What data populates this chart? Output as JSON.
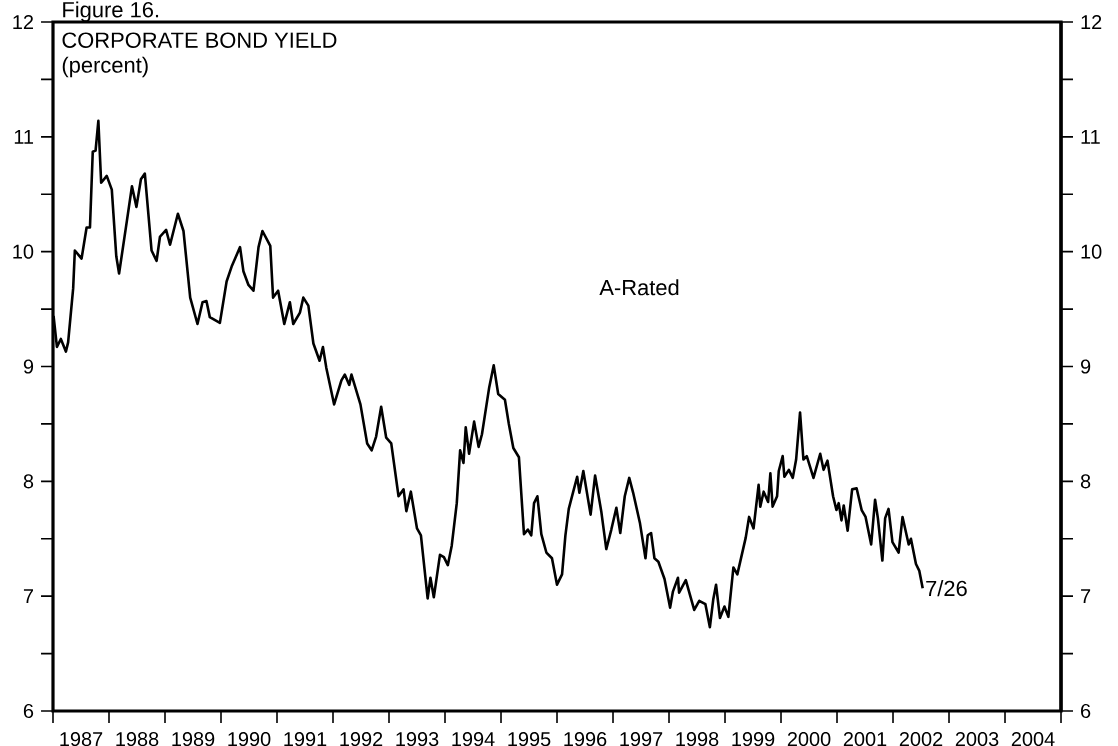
{
  "chart_data": {
    "type": "line",
    "title": "CORPORATE BOND YIELD",
    "subtitle": "(percent)",
    "annotations": [
      "Figure 16.",
      {
        "text": "7/26",
        "x": 2002.53,
        "y": 7.07
      }
    ],
    "xlim": [
      1987,
      2005
    ],
    "ylim": [
      6,
      12
    ],
    "y2lim": [
      6,
      12
    ],
    "xticks": [
      {
        "value": 1987,
        "label": null
      },
      {
        "value": 1987.5,
        "label": "1987"
      },
      {
        "value": 1988,
        "label": null
      },
      {
        "value": 1988.5,
        "label": "1988"
      },
      {
        "value": 1989,
        "label": null
      },
      {
        "value": 1989.5,
        "label": "1989"
      },
      {
        "value": 1990,
        "label": null
      },
      {
        "value": 1990.5,
        "label": "1990"
      },
      {
        "value": 1991,
        "label": null
      },
      {
        "value": 1991.5,
        "label": "1991"
      },
      {
        "value": 1992,
        "label": null
      },
      {
        "value": 1992.5,
        "label": "1992"
      },
      {
        "value": 1993,
        "label": null
      },
      {
        "value": 1993.5,
        "label": "1993"
      },
      {
        "value": 1994,
        "label": null
      },
      {
        "value": 1994.5,
        "label": "1994"
      },
      {
        "value": 1995,
        "label": null
      },
      {
        "value": 1995.5,
        "label": "1995"
      },
      {
        "value": 1996,
        "label": null
      },
      {
        "value": 1996.5,
        "label": "1996"
      },
      {
        "value": 1997,
        "label": null
      },
      {
        "value": 1997.5,
        "label": "1997"
      },
      {
        "value": 1998,
        "label": null
      },
      {
        "value": 1998.5,
        "label": "1998"
      },
      {
        "value": 1999,
        "label": null
      },
      {
        "value": 1999.5,
        "label": "1999"
      },
      {
        "value": 2000,
        "label": null
      },
      {
        "value": 2000.5,
        "label": "2000"
      },
      {
        "value": 2001,
        "label": null
      },
      {
        "value": 2001.5,
        "label": "2001"
      },
      {
        "value": 2002,
        "label": null
      },
      {
        "value": 2002.5,
        "label": "2002"
      },
      {
        "value": 2003,
        "label": null
      },
      {
        "value": 2003.5,
        "label": "2003"
      },
      {
        "value": 2004,
        "label": null
      },
      {
        "value": 2004.5,
        "label": "2004"
      },
      {
        "value": 2005,
        "label": null
      }
    ],
    "yticks": [
      6,
      {
        "value": 6.5,
        "label": null
      },
      7,
      {
        "value": 7.5,
        "label": null
      },
      8,
      {
        "value": 8.5,
        "label": null
      },
      9,
      {
        "value": 9.5,
        "label": null
      },
      10,
      {
        "value": 10.5,
        "label": null
      },
      11,
      {
        "value": 11.5,
        "label": null
      },
      12
    ],
    "y2ticks": [
      6,
      {
        "value": 6.5,
        "label": null
      },
      7,
      {
        "value": 7.5,
        "label": null
      },
      8,
      {
        "value": 8.5,
        "label": null
      },
      9,
      {
        "value": 9.5,
        "label": null
      },
      10,
      {
        "value": 10.5,
        "label": null
      },
      11,
      {
        "value": 11.5,
        "label": null
      },
      12
    ],
    "x": [
      1987.01,
      1987.07,
      1987.14,
      1987.23,
      1987.27,
      1987.36,
      1987.39,
      1987.51,
      1987.6,
      1987.66,
      1987.71,
      1987.76,
      1987.81,
      1987.86,
      1987.96,
      1988.05,
      1988.13,
      1988.18,
      1988.32,
      1988.41,
      1988.49,
      1988.57,
      1988.64,
      1988.76,
      1988.85,
      1988.91,
      1989.02,
      1989.09,
      1989.23,
      1989.33,
      1989.45,
      1989.58,
      1989.67,
      1989.74,
      1989.8,
      1989.98,
      1990.1,
      1990.19,
      1990.34,
      1990.4,
      1990.49,
      1990.58,
      1990.67,
      1990.74,
      1990.88,
      1990.93,
      1991.02,
      1991.13,
      1991.23,
      1991.29,
      1991.41,
      1991.47,
      1991.56,
      1991.65,
      1991.76,
      1991.82,
      1991.88,
      1992.02,
      1992.15,
      1992.21,
      1992.29,
      1992.33,
      1992.49,
      1992.61,
      1992.69,
      1992.77,
      1992.86,
      1992.95,
      1993.04,
      1993.17,
      1993.26,
      1993.31,
      1993.39,
      1993.5,
      1993.57,
      1993.69,
      1993.74,
      1993.8,
      1993.91,
      1993.98,
      1994.05,
      1994.12,
      1994.21,
      1994.27,
      1994.33,
      1994.37,
      1994.43,
      1994.52,
      1994.6,
      1994.66,
      1994.79,
      1994.87,
      1994.95,
      1995.07,
      1995.14,
      1995.22,
      1995.32,
      1995.41,
      1995.48,
      1995.54,
      1995.59,
      1995.65,
      1995.72,
      1995.81,
      1995.91,
      1996.0,
      1996.09,
      1996.15,
      1996.21,
      1996.29,
      1996.36,
      1996.4,
      1996.47,
      1996.6,
      1996.68,
      1996.79,
      1996.88,
      1996.97,
      1997.06,
      1997.13,
      1997.21,
      1997.29,
      1997.36,
      1997.48,
      1997.58,
      1997.62,
      1997.68,
      1997.74,
      1997.81,
      1997.92,
      1998.02,
      1998.07,
      1998.16,
      1998.18,
      1998.3,
      1998.45,
      1998.54,
      1998.65,
      1998.73,
      1998.79,
      1998.84,
      1998.91,
      1998.99,
      1999.06,
      1999.15,
      1999.22,
      1999.37,
      1999.43,
      1999.51,
      1999.6,
      1999.63,
      1999.69,
      1999.77,
      1999.81,
      1999.85,
      1999.93,
      1999.96,
      2000.03,
      2000.06,
      2000.14,
      2000.21,
      2000.27,
      2000.34,
      2000.4,
      2000.46,
      2000.58,
      2000.7,
      2000.76,
      2000.83,
      2000.93,
      2000.99,
      2001.03,
      2001.08,
      2001.12,
      2001.19,
      2001.27,
      2001.35,
      2001.44,
      2001.51,
      2001.61,
      2001.68,
      2001.73,
      2001.81,
      2001.86,
      2001.92,
      2001.99,
      2002.1,
      2002.17,
      2002.28,
      2002.32,
      2002.41,
      2002.47,
      2002.53
    ],
    "series": [
      {
        "name": "A-Rated",
        "color": "#000000",
        "values": [
          9.44,
          9.17,
          9.24,
          9.13,
          9.21,
          9.68,
          10.01,
          9.94,
          10.21,
          10.21,
          10.87,
          10.88,
          11.14,
          10.6,
          10.66,
          10.54,
          9.96,
          9.81,
          10.27,
          10.57,
          10.39,
          10.63,
          10.68,
          10.01,
          9.92,
          10.13,
          10.19,
          10.06,
          10.33,
          10.18,
          9.6,
          9.37,
          9.56,
          9.57,
          9.43,
          9.38,
          9.74,
          9.87,
          10.04,
          9.83,
          9.71,
          9.66,
          10.04,
          10.18,
          10.05,
          9.6,
          9.66,
          9.37,
          9.56,
          9.37,
          9.47,
          9.6,
          9.53,
          9.2,
          9.05,
          9.17,
          8.99,
          8.67,
          8.88,
          8.93,
          8.84,
          8.93,
          8.67,
          8.33,
          8.27,
          8.39,
          8.65,
          8.38,
          8.33,
          7.87,
          7.93,
          7.74,
          7.91,
          7.59,
          7.53,
          6.98,
          7.16,
          6.99,
          7.36,
          7.34,
          7.27,
          7.44,
          7.81,
          8.27,
          8.16,
          8.47,
          8.24,
          8.52,
          8.3,
          8.41,
          8.82,
          9.01,
          8.76,
          8.71,
          8.5,
          8.29,
          8.21,
          7.54,
          7.58,
          7.53,
          7.81,
          7.87,
          7.54,
          7.38,
          7.33,
          7.1,
          7.19,
          7.53,
          7.76,
          7.91,
          8.04,
          7.9,
          8.09,
          7.71,
          8.05,
          7.74,
          7.41,
          7.58,
          7.77,
          7.55,
          7.87,
          8.03,
          7.9,
          7.64,
          7.33,
          7.53,
          7.55,
          7.33,
          7.3,
          7.15,
          6.9,
          7.04,
          7.16,
          7.03,
          7.14,
          6.88,
          6.96,
          6.93,
          6.73,
          6.97,
          7.1,
          6.81,
          6.91,
          6.82,
          7.25,
          7.19,
          7.51,
          7.69,
          7.59,
          7.97,
          7.78,
          7.91,
          7.82,
          8.07,
          7.78,
          7.87,
          8.09,
          8.22,
          8.04,
          8.1,
          8.03,
          8.19,
          8.6,
          8.19,
          8.22,
          8.03,
          8.24,
          8.1,
          8.18,
          7.87,
          7.75,
          7.81,
          7.66,
          7.79,
          7.57,
          7.93,
          7.94,
          7.75,
          7.69,
          7.45,
          7.84,
          7.68,
          7.31,
          7.68,
          7.76,
          7.47,
          7.38,
          7.69,
          7.45,
          7.5,
          7.28,
          7.22,
          7.07
        ]
      }
    ]
  }
}
